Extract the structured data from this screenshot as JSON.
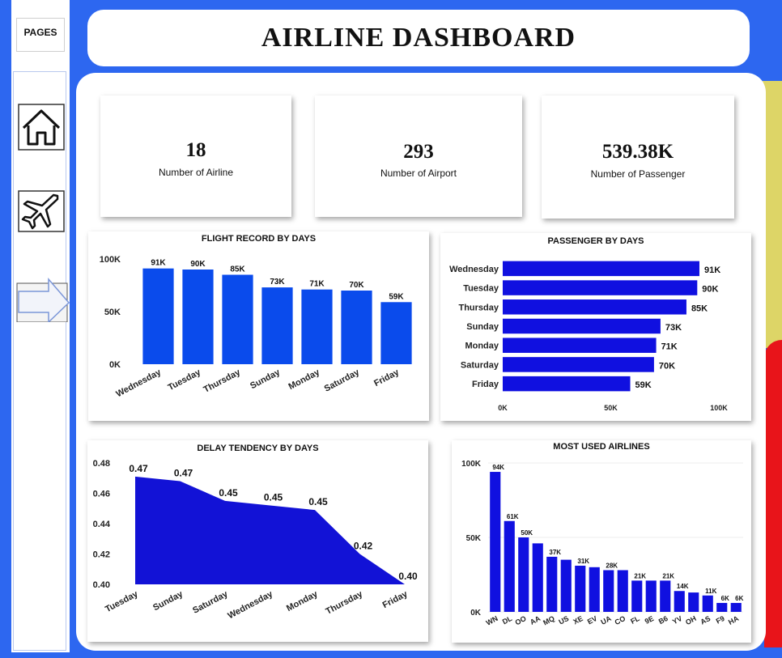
{
  "sidebar": {
    "pages_label": "PAGES",
    "nav": [
      {
        "icon": "home-icon"
      },
      {
        "icon": "airplane-icon"
      },
      {
        "icon": "arrow-right-icon"
      }
    ]
  },
  "header": {
    "title": "AIRLINE DASHBOARD"
  },
  "kpis": [
    {
      "value": "18",
      "label": "Number of Airline"
    },
    {
      "value": "293",
      "label": "Number of  Airport"
    },
    {
      "value": "539.38K",
      "label": "Number of Passenger"
    }
  ],
  "colors": {
    "bar_blue": "#0a4bec",
    "bar_navy": "#1010e0",
    "area_navy": "#1212d6",
    "page_blue": "#2d67f0"
  },
  "chart_data": [
    {
      "type": "bar",
      "title": "FLIGHT RECORD BY DAYS",
      "categories": [
        "Wednesday",
        "Tuesday",
        "Thursday",
        "Sunday",
        "Monday",
        "Saturday",
        "Friday"
      ],
      "values": [
        91,
        90,
        85,
        73,
        71,
        70,
        59
      ],
      "data_labels": [
        "91K",
        "90K",
        "85K",
        "73K",
        "71K",
        "70K",
        "59K"
      ],
      "yticks": [
        "0K",
        "50K",
        "100K"
      ],
      "ylim": [
        0,
        100
      ]
    },
    {
      "type": "bar",
      "orientation": "horizontal",
      "title": "PASSENGER BY DAYS",
      "categories": [
        "Wednesday",
        "Tuesday",
        "Thursday",
        "Sunday",
        "Monday",
        "Saturday",
        "Friday"
      ],
      "values": [
        91,
        90,
        85,
        73,
        71,
        70,
        59
      ],
      "data_labels": [
        "91K",
        "90K",
        "85K",
        "73K",
        "71K",
        "70K",
        "59K"
      ],
      "xticks": [
        "0K",
        "50K",
        "100K"
      ],
      "xlim": [
        0,
        100
      ]
    },
    {
      "type": "area",
      "title": "DELAY TENDENCY BY DAYS",
      "categories": [
        "Tuesday",
        "Sunday",
        "Saturday",
        "Wednesday",
        "Monday",
        "Thursday",
        "Friday"
      ],
      "values": [
        0.471,
        0.468,
        0.455,
        0.452,
        0.449,
        0.42,
        0.4
      ],
      "data_labels": [
        "0.47",
        "0.47",
        "0.45",
        "0.45",
        "0.45",
        "0.42",
        "0.40"
      ],
      "yticks": [
        "0.40",
        "0.42",
        "0.44",
        "0.46",
        "0.48"
      ],
      "ylim": [
        0.4,
        0.48
      ]
    },
    {
      "type": "bar",
      "title": "MOST USED AIRLINES",
      "categories": [
        "WN",
        "DL",
        "OO",
        "AA",
        "MQ",
        "US",
        "XE",
        "EV",
        "UA",
        "CO",
        "FL",
        "9E",
        "B6",
        "YV",
        "OH",
        "AS",
        "F9",
        "HA"
      ],
      "values": [
        94,
        61,
        50,
        46,
        37,
        35,
        31,
        30,
        28,
        28,
        21,
        21,
        21,
        14,
        13,
        11,
        6,
        6
      ],
      "data_labels": [
        "94K",
        "61K",
        "50K",
        "",
        "37K",
        "",
        "31K",
        "",
        "28K",
        "",
        "21K",
        "",
        "21K",
        "14K",
        "",
        "11K",
        "6K",
        "6K"
      ],
      "yticks": [
        "0K",
        "50K",
        "100K"
      ],
      "ylim": [
        0,
        100
      ]
    }
  ]
}
